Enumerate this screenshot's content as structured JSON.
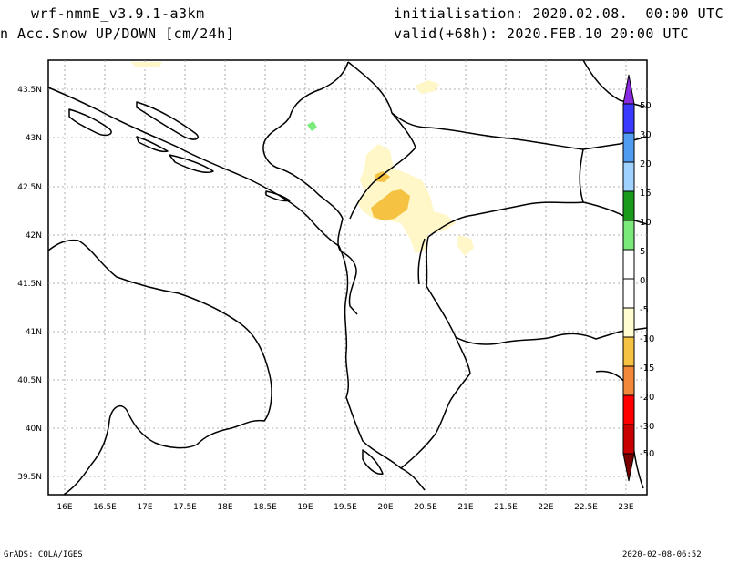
{
  "header": {
    "model": "wrf-nmmE_v3.9.1-a3km",
    "variable": "n Acc.Snow UP/DOWN [cm/24h]",
    "initialisation": "initialisation: 2020.02.08.  00:00 UTC",
    "valid": "valid(+68h): 2020.FEB.10 20:00 UTC"
  },
  "footer": {
    "credit": "GrADS: COLA/IGES",
    "timestamp": "2020-02-08-06:52"
  },
  "axes": {
    "lat_labels": [
      "43.5N",
      "43N",
      "42.5N",
      "42N",
      "41.5N",
      "41N",
      "40.5N",
      "40N",
      "39.5N"
    ],
    "lon_labels": [
      "16E",
      "16.5E",
      "17E",
      "17.5E",
      "18E",
      "18.5E",
      "19E",
      "19.5E",
      "20E",
      "20.5E",
      "21E",
      "21.5E",
      "22E",
      "22.5E",
      "23E"
    ]
  },
  "colorbar": {
    "labels": [
      "50",
      "30",
      "20",
      "15",
      "10",
      "5",
      "0",
      "-5",
      "-10",
      "-15",
      "-20",
      "-30",
      "-50"
    ],
    "colors": [
      "#8a2be2",
      "#3a3aff",
      "#4f9cf0",
      "#a0d2ff",
      "#1a9a1a",
      "#7aeb7a",
      "#ffffff",
      "#ffffff",
      "#fffcd0",
      "#f5c242",
      "#f08a3a",
      "#ff0000",
      "#c80000",
      "#7a0000"
    ]
  },
  "snow_colors": {
    "light": "#fff7c8",
    "medium": "#f5c242",
    "green": "#7aeb7a"
  }
}
